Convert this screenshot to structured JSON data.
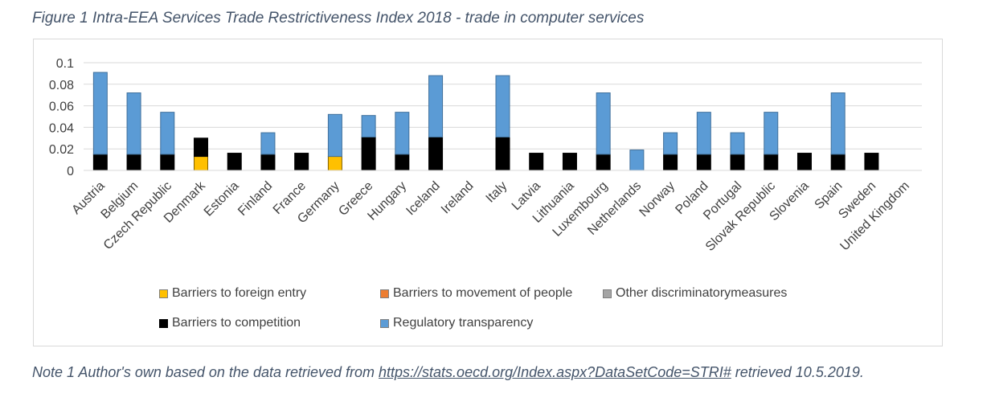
{
  "figure_caption": "Figure 1 Intra-EEA Services Trade Restrictiveness Index 2018 - trade in computer services",
  "note": {
    "prefix": "Note 1 Author's own based on the data retrieved from ",
    "link": "https://stats.oecd.org/Index.aspx?DataSetCode=STRI#",
    "suffix": " retrieved 10.5.2019."
  },
  "chart_data": {
    "type": "bar",
    "stacked": true,
    "title": "",
    "xlabel": "",
    "ylabel": "",
    "ylim": [
      0,
      0.1
    ],
    "yticks": [
      "0",
      "0.02",
      "0.04",
      "0.06",
      "0.08",
      "0.1"
    ],
    "grid": true,
    "legend_position": "bottom",
    "categories": [
      "Austria",
      "Belgium",
      "Czech Republic",
      "Denmark",
      "Estonia",
      "Finland",
      "France",
      "Germany",
      "Greece",
      "Hungary",
      "Iceland",
      "Ireland",
      "Italy",
      "Latvia",
      "Lithuania",
      "Luxembourg",
      "Netherlands",
      "Norway",
      "Poland",
      "Portugal",
      "Slovak Republic",
      "Slovenia",
      "Spain",
      "Sweden",
      "United Kingdom"
    ],
    "series": [
      {
        "name": "Barriers to foreign entry",
        "color": "#FFC000",
        "values": [
          0,
          0,
          0,
          0.013,
          0,
          0,
          0,
          0.013,
          0,
          0,
          0,
          0,
          0,
          0,
          0,
          0,
          0,
          0,
          0,
          0,
          0,
          0,
          0,
          0,
          0
        ]
      },
      {
        "name": "Barriers to movement of people",
        "color": "#ED7D31",
        "values": [
          0,
          0,
          0,
          0,
          0,
          0,
          0,
          0,
          0,
          0,
          0,
          0,
          0,
          0,
          0,
          0,
          0,
          0,
          0,
          0,
          0,
          0,
          0,
          0,
          0
        ]
      },
      {
        "name": "Other discriminatorymeasures",
        "color": "#A5A5A5",
        "values": [
          0,
          0,
          0,
          0,
          0,
          0,
          0,
          0,
          0,
          0,
          0,
          0,
          0,
          0,
          0,
          0,
          0,
          0,
          0,
          0,
          0,
          0,
          0,
          0,
          0
        ]
      },
      {
        "name": "Barriers to competition",
        "color": "#000000",
        "values": [
          0.015,
          0.015,
          0.015,
          0.017,
          0.016,
          0.015,
          0.016,
          0,
          0.031,
          0.015,
          0.031,
          0,
          0.031,
          0.016,
          0.016,
          0.015,
          0,
          0.015,
          0.015,
          0.015,
          0.015,
          0.016,
          0.015,
          0.016,
          0
        ]
      },
      {
        "name": "Regulatory transparency",
        "color": "#5B9BD5",
        "values": [
          0.076,
          0.057,
          0.039,
          0,
          0,
          0.02,
          0,
          0.039,
          0.02,
          0.039,
          0.057,
          0,
          0.057,
          0,
          0,
          0.057,
          0.019,
          0.02,
          0.039,
          0.02,
          0.039,
          0,
          0.057,
          0,
          0
        ]
      }
    ]
  }
}
